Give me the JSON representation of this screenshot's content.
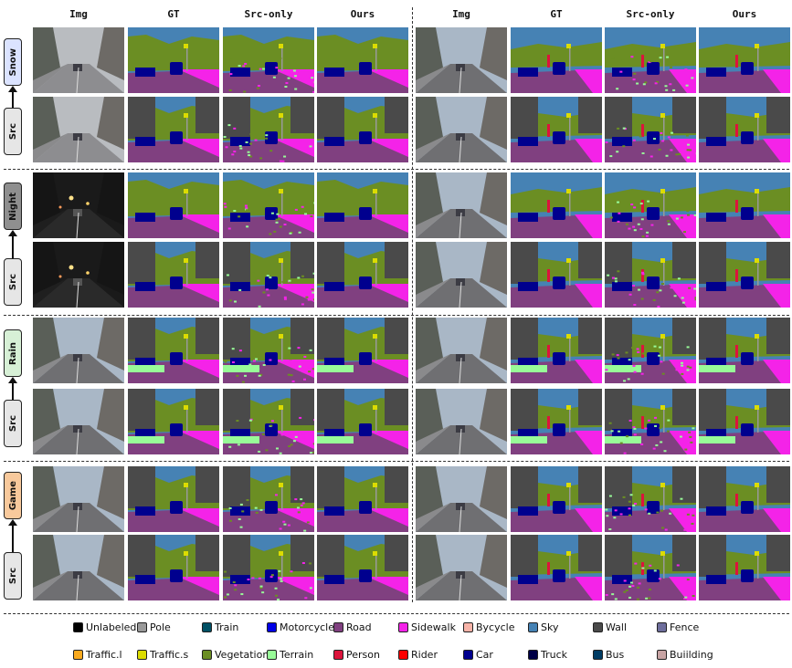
{
  "columns": [
    "Img",
    "GT",
    "Src-only",
    "Ours",
    "Img",
    "GT",
    "Src-only",
    "Ours"
  ],
  "groups": [
    {
      "label": "Snow",
      "tag_color": "#dbe3ff",
      "src_label": "Src",
      "src_color": "#e6e6e6"
    },
    {
      "label": "Night",
      "tag_color": "#8f8f8f",
      "src_label": "Src",
      "src_color": "#e6e6e6"
    },
    {
      "label": "Rain",
      "tag_color": "#d7f0d6",
      "src_label": "Src",
      "src_color": "#e6e6e6"
    },
    {
      "label": "Game",
      "tag_color": "#f8c99c",
      "src_label": "Src",
      "src_color": "#e6e6e6"
    }
  ],
  "legend": [
    {
      "label": "Unlabeled",
      "color": "#000000"
    },
    {
      "label": "Pole",
      "color": "#999999"
    },
    {
      "label": "Train",
      "color": "#005064"
    },
    {
      "label": "Motorcycle",
      "color": "#0000e6"
    },
    {
      "label": "Road",
      "color": "#804080"
    },
    {
      "label": "Sidewalk",
      "color": "#f423e8"
    },
    {
      "label": "Bycycle",
      "color": "#f7b3a8"
    },
    {
      "label": "Sky",
      "color": "#4682b4"
    },
    {
      "label": "Wall",
      "color": "#4a4a4a"
    },
    {
      "label": "Fence",
      "color": "#6e6e9c"
    },
    {
      "label": "Traffic.l",
      "color": "#faaa1e"
    },
    {
      "label": "Traffic.s",
      "color": "#dcdc00"
    },
    {
      "label": "Vegetation",
      "color": "#6b8e23"
    },
    {
      "label": "Terrain",
      "color": "#98fb98"
    },
    {
      "label": "Person",
      "color": "#dc143c"
    },
    {
      "label": "Rider",
      "color": "#ff0000"
    },
    {
      "label": "Car",
      "color": "#00008e"
    },
    {
      "label": "Truck",
      "color": "#000046"
    },
    {
      "label": "Bus",
      "color": "#003c64"
    },
    {
      "label": "Buiilding",
      "color": "#c8a4a4"
    }
  ]
}
